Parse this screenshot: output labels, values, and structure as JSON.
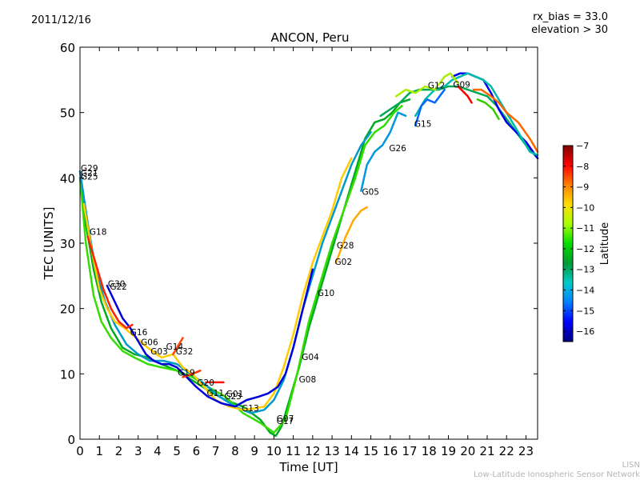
{
  "header": {
    "date": "2011/12/16",
    "title": "ANCON, Peru",
    "rx_bias": "rx_bias = 33.0",
    "elevation": "elevation > 30"
  },
  "footer": {
    "credit_short": "LISN",
    "credit_long": "Low-Latitude Ionospheric Sensor Network"
  },
  "chart_data": {
    "type": "line",
    "title": "ANCON, Peru",
    "xlabel": "Time [UT]",
    "ylabel": "TEC [UNITS]",
    "xlim": [
      0,
      23.6
    ],
    "ylim": [
      0,
      60
    ],
    "xticks": [
      "0",
      "1",
      "2",
      "3",
      "4",
      "5",
      "6",
      "7",
      "8",
      "9",
      "10",
      "11",
      "12",
      "13",
      "14",
      "15",
      "16",
      "17",
      "18",
      "19",
      "20",
      "21",
      "22",
      "23"
    ],
    "yticks": [
      "0",
      "10",
      "20",
      "30",
      "40",
      "50",
      "60"
    ],
    "grid": false,
    "colorbar": {
      "label": "Latitude",
      "range": [
        -16.5,
        -7
      ],
      "ticks": [
        "−7",
        "−8",
        "−9",
        "−10",
        "−11",
        "−12",
        "−13",
        "−14",
        "−15",
        "−16"
      ],
      "tick_values": [
        -7,
        -8,
        -9,
        -10,
        -11,
        -12,
        -13,
        -14,
        -15,
        -16
      ],
      "stops": [
        "#00007f",
        "#0000ff",
        "#0080ff",
        "#00cccc",
        "#009933",
        "#00dd00",
        "#aaff00",
        "#ffdd00",
        "#ff8000",
        "#ff0000",
        "#7f0000"
      ]
    },
    "series": [
      {
        "name": "trace-a",
        "color": "#00aa22",
        "x": [
          0,
          0.3,
          0.7,
          1.1,
          1.6,
          2.2,
          2.8,
          3.5,
          4.2,
          5,
          5.8,
          6.6,
          7.5,
          8.4,
          9.3,
          9.8,
          10.1,
          10.4,
          10.8,
          11.3,
          11.8,
          12.4,
          13,
          13.6,
          14.2,
          14.7,
          15.2,
          15.7,
          16.1,
          16.5,
          17
        ],
        "y": [
          41,
          33,
          26,
          21,
          17,
          14,
          13,
          12.5,
          11.5,
          10.5,
          9,
          7.5,
          6,
          5,
          3,
          1,
          0.5,
          2,
          6,
          11,
          17,
          23,
          29,
          35,
          41,
          46,
          48.5,
          49,
          50,
          51.5,
          52
        ]
      },
      {
        "name": "trace-b",
        "color": "#33dd00",
        "x": [
          0,
          0.3,
          0.7,
          1.1,
          1.6,
          2.2,
          2.8,
          3.5,
          4.2,
          5,
          5.8,
          6.6,
          7.5,
          8.4,
          9.3,
          10,
          10.6,
          11.2,
          11.8,
          12.4,
          13,
          13.6,
          14.2,
          14.7,
          15.2,
          15.7,
          16.2,
          16.6
        ],
        "y": [
          40,
          30,
          22,
          18,
          15.5,
          13.5,
          12.5,
          11.5,
          11,
          10.5,
          9.5,
          8,
          6.5,
          4,
          2.5,
          1,
          3,
          10,
          18,
          24,
          30,
          35,
          40,
          45,
          47,
          48,
          50,
          51
        ]
      },
      {
        "name": "trace-c",
        "color": "#0099cc",
        "x": [
          0,
          0.4,
          0.8,
          1.3,
          1.8,
          2.4,
          3,
          3.6,
          4.3,
          5,
          5.7,
          6.4,
          7.2,
          8,
          8.8,
          9.5,
          10,
          10.5,
          11,
          11.5,
          12,
          12.5,
          13,
          13.5,
          14,
          14.5,
          15
        ],
        "y": [
          41,
          33,
          26,
          21,
          17.5,
          14.5,
          13,
          12,
          12,
          11.5,
          10,
          8.5,
          6.5,
          5,
          4,
          4.5,
          6,
          9,
          14,
          20,
          25,
          30,
          34,
          38,
          42,
          45,
          47
        ]
      },
      {
        "name": "trace-d",
        "color": "#ffcc00",
        "x": [
          0.2,
          0.6,
          1,
          1.4,
          1.8,
          2.3,
          2.9,
          3.5,
          4.2,
          4.8,
          5.3,
          5.8,
          6.4,
          7,
          7.7,
          8.4,
          9,
          9.5,
          10,
          10.5,
          11,
          11.5,
          12,
          12.5,
          13,
          13.5,
          14
        ],
        "y": [
          36,
          29,
          23,
          20,
          18,
          17,
          15.5,
          14,
          12.5,
          13,
          11,
          10,
          8,
          6,
          5,
          4.5,
          4.7,
          5,
          7,
          11,
          16,
          22,
          27,
          31,
          35,
          40,
          43
        ]
      },
      {
        "name": "trace-e",
        "color": "#0000dd",
        "x": [
          1.4,
          1.8,
          2.2,
          2.6,
          3,
          3.4,
          3.8,
          4.2,
          4.6,
          5,
          5.5,
          6,
          6.6,
          7.3,
          8,
          8.6,
          9.2,
          9.7,
          10.2,
          10.6,
          11,
          11.5,
          12
        ],
        "y": [
          23.5,
          21,
          18.5,
          17,
          15,
          13,
          12,
          11.5,
          11.5,
          11,
          9.5,
          8,
          6.5,
          5.5,
          5,
          6,
          6.5,
          7,
          8,
          10,
          14,
          20,
          26
        ]
      },
      {
        "name": "trace-f",
        "color": "#ff2200",
        "x": [
          0.4,
          0.8,
          1.2,
          1.6,
          2,
          2.4,
          2.7
        ],
        "y": [
          31,
          27,
          23,
          20,
          18,
          17,
          17.5
        ]
      },
      {
        "name": "trace-g",
        "color": "#ff4400",
        "x": [
          4.8,
          5.1,
          5.3
        ],
        "y": [
          13,
          14.5,
          15.5
        ]
      },
      {
        "name": "trace-h",
        "color": "#ff3300",
        "x": [
          5.3,
          5.8,
          6.2
        ],
        "y": [
          9.5,
          10,
          10.5
        ]
      },
      {
        "name": "trace-i",
        "color": "#ff1100",
        "x": [
          6.5,
          7,
          7.4
        ],
        "y": [
          8.7,
          8.7,
          8.7
        ]
      },
      {
        "name": "trace-j",
        "color": "#00aa55",
        "x": [
          15.5,
          16,
          16.5,
          17,
          17.5,
          18,
          18.5,
          19,
          19.5,
          20,
          20.5,
          21,
          21.5,
          22,
          22.5,
          23,
          23.6
        ],
        "y": [
          49.5,
          50.5,
          51.5,
          53,
          53.5,
          53.5,
          53.5,
          54,
          54,
          53.5,
          53,
          52.5,
          51,
          49,
          47,
          45,
          43
        ]
      },
      {
        "name": "trace-k",
        "color": "#0000ee",
        "x": [
          19.2,
          19.6,
          20,
          20.4,
          20.8,
          21.2,
          21.6,
          22,
          22.5,
          23,
          23.6
        ],
        "y": [
          55.5,
          56,
          56,
          55.5,
          55,
          53,
          50.5,
          48.5,
          47,
          45.5,
          43
        ]
      },
      {
        "name": "trace-l",
        "color": "#00bbaa",
        "x": [
          17.3,
          17.8,
          18.3,
          18.8,
          19.2,
          19.6,
          20,
          20.4,
          20.8,
          21.2,
          21.6,
          22,
          22.4,
          22.8,
          23.2,
          23.6
        ],
        "y": [
          49.5,
          52,
          53.5,
          54,
          55,
          55.5,
          56,
          55.5,
          55,
          54,
          52,
          50,
          48,
          46,
          44,
          43.5
        ]
      },
      {
        "name": "trace-m",
        "color": "#aaee00",
        "x": [
          16.3,
          16.8,
          17.3,
          17.8,
          18.3,
          18.8,
          19.1,
          19.5
        ],
        "y": [
          52.5,
          53.5,
          53,
          54,
          53.5,
          55.5,
          56,
          54.5
        ]
      },
      {
        "name": "trace-n",
        "color": "#ff6600",
        "x": [
          20.3,
          20.7,
          21.2,
          21.6,
          22,
          22.6,
          23.2,
          23.6
        ],
        "y": [
          53.5,
          53.5,
          52.5,
          51.5,
          50,
          48.5,
          46,
          44
        ]
      },
      {
        "name": "trace-o",
        "color": "#ff0000",
        "x": [
          19.5,
          20,
          20.2
        ],
        "y": [
          54,
          52.5,
          51.5
        ]
      },
      {
        "name": "trace-p",
        "color": "#33cc00",
        "x": [
          20.5,
          20.9,
          21.3,
          21.6
        ],
        "y": [
          52,
          51.5,
          50.5,
          49
        ]
      },
      {
        "name": "trace-q",
        "color": "#ffaa00",
        "x": [
          13.2,
          13.7,
          14.1,
          14.5,
          14.8
        ],
        "y": [
          27,
          31,
          33.5,
          35,
          35.5
        ]
      },
      {
        "name": "trace-r",
        "color": "#0099dd",
        "x": [
          14.5,
          14.8,
          15.2,
          15.6,
          16,
          16.4,
          16.8
        ],
        "y": [
          38,
          42,
          44,
          45,
          47,
          50,
          49.5
        ]
      },
      {
        "name": "trace-s",
        "color": "#0066ff",
        "x": [
          17.3,
          17.6,
          17.9,
          18.3,
          18.8
        ],
        "y": [
          48,
          51,
          52,
          51.5,
          53.5
        ]
      }
    ],
    "prn_labels": [
      {
        "text": "G29",
        "x": 0,
        "y": 41.5
      },
      {
        "text": "G21",
        "x": 0,
        "y": 40.8
      },
      {
        "text": "G25",
        "x": 0,
        "y": 40.2
      },
      {
        "text": "G18",
        "x": 0.45,
        "y": 31.8
      },
      {
        "text": "G30",
        "x": 1.4,
        "y": 23.8
      },
      {
        "text": "G22",
        "x": 1.5,
        "y": 23.4
      },
      {
        "text": "G16",
        "x": 2.55,
        "y": 16.4
      },
      {
        "text": "G06",
        "x": 3.1,
        "y": 14.9
      },
      {
        "text": "G03",
        "x": 3.6,
        "y": 13.5
      },
      {
        "text": "G14",
        "x": 4.4,
        "y": 14.2
      },
      {
        "text": "G32",
        "x": 4.9,
        "y": 13.5
      },
      {
        "text": "G19",
        "x": 5,
        "y": 10.2
      },
      {
        "text": "G20",
        "x": 6,
        "y": 8.7
      },
      {
        "text": "G11",
        "x": 6.5,
        "y": 7.1
      },
      {
        "text": "G01",
        "x": 7.5,
        "y": 7
      },
      {
        "text": "G23",
        "x": 7.4,
        "y": 6.6
      },
      {
        "text": "G13",
        "x": 8.3,
        "y": 4.8
      },
      {
        "text": "G07",
        "x": 10.1,
        "y": 3.2
      },
      {
        "text": "G17",
        "x": 10.1,
        "y": 2.8
      },
      {
        "text": "G04",
        "x": 11.4,
        "y": 12.6
      },
      {
        "text": "G08",
        "x": 11.25,
        "y": 9.2
      },
      {
        "text": "G10",
        "x": 12.2,
        "y": 22.4
      },
      {
        "text": "G02",
        "x": 13.1,
        "y": 27.2
      },
      {
        "text": "G28",
        "x": 13.2,
        "y": 29.7
      },
      {
        "text": "G05",
        "x": 14.5,
        "y": 37.9
      },
      {
        "text": "G26",
        "x": 15.9,
        "y": 44.6
      },
      {
        "text": "G15",
        "x": 17.2,
        "y": 48.3
      },
      {
        "text": "G12",
        "x": 17.9,
        "y": 54.2
      },
      {
        "text": "G09",
        "x": 19.2,
        "y": 54.3
      }
    ]
  }
}
